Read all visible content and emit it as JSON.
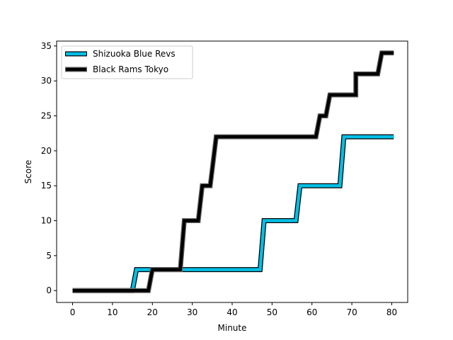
{
  "chart_data": {
    "type": "line",
    "title": "",
    "xlabel": "Minute",
    "ylabel": "Score",
    "xlim": [
      -4,
      84
    ],
    "ylim": [
      -1.7,
      35.7
    ],
    "xticks": [
      0,
      10,
      20,
      30,
      40,
      50,
      60,
      70,
      80
    ],
    "yticks": [
      0,
      5,
      10,
      15,
      20,
      25,
      30,
      35
    ],
    "grid": false,
    "legend_position": "top-left",
    "series": [
      {
        "name": "Shizuoka Blue Revs",
        "color": "#00bfe6",
        "edge_color": "#000000",
        "x": [
          0,
          15,
          16,
          47,
          48,
          56,
          57,
          67,
          68,
          80.5
        ],
        "y": [
          0,
          0,
          3,
          3,
          10,
          10,
          15,
          15,
          22,
          22
        ]
      },
      {
        "name": "Black Rams Tokyo",
        "color": "#000000",
        "edge_color": "#666666",
        "x": [
          0,
          19,
          20,
          27,
          28,
          31.5,
          32.5,
          34.5,
          36,
          61,
          62,
          63.5,
          64.5,
          71,
          71,
          76.5,
          77.5,
          80.5
        ],
        "y": [
          0,
          0,
          3,
          3,
          10,
          10,
          15,
          15,
          22,
          22,
          25,
          25,
          28,
          28,
          31,
          31,
          34,
          34
        ]
      }
    ]
  }
}
